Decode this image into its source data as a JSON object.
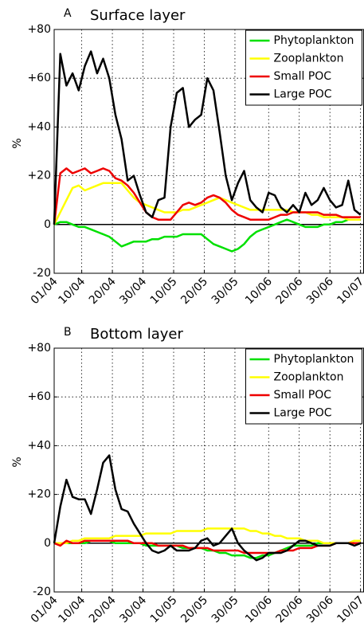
{
  "chart_data": [
    {
      "type": "line",
      "panel": "A",
      "title": "Surface layer",
      "ylabel": "%",
      "grid": true,
      "legend": "upper right",
      "zero_line": true,
      "x": [
        0,
        2,
        4,
        6,
        8,
        10,
        12,
        14,
        16,
        18,
        20,
        22,
        24,
        26,
        28,
        30,
        32,
        34,
        36,
        38,
        40,
        42,
        44,
        46,
        48,
        50,
        52,
        54,
        56,
        58,
        60,
        62,
        64,
        66,
        68,
        70,
        72,
        74,
        76,
        78,
        80,
        82,
        84,
        86,
        88,
        90,
        92,
        94,
        96,
        98,
        100
      ],
      "xlim": [
        0,
        101
      ],
      "xticks": [
        {
          "value": 0,
          "label": "01/04"
        },
        {
          "value": 9,
          "label": "10/04"
        },
        {
          "value": 19,
          "label": "20/04"
        },
        {
          "value": 29,
          "label": "30/04"
        },
        {
          "value": 39,
          "label": "10/05"
        },
        {
          "value": 49,
          "label": "20/05"
        },
        {
          "value": 59,
          "label": "30/05"
        },
        {
          "value": 70,
          "label": "10/06"
        },
        {
          "value": 80,
          "label": "20/06"
        },
        {
          "value": 90,
          "label": "30/06"
        },
        {
          "value": 100,
          "label": "10/07"
        }
      ],
      "ylim": [
        -20,
        80
      ],
      "yticks": [
        -20,
        0,
        {
          "value": 20,
          "label": "+20"
        },
        {
          "value": 40,
          "label": "+40"
        },
        {
          "value": 60,
          "label": "+60"
        },
        {
          "value": 80,
          "label": "+80"
        }
      ],
      "series": [
        {
          "name": "Phytoplankton",
          "color": "#00e000",
          "values": [
            0,
            1,
            1,
            0,
            -1,
            -1,
            -2,
            -3,
            -4,
            -5,
            -7,
            -9,
            -8,
            -7,
            -7,
            -7,
            -6,
            -6,
            -5,
            -5,
            -5,
            -4,
            -4,
            -4,
            -4,
            -6,
            -8,
            -9,
            -10,
            -11,
            -10,
            -8,
            -5,
            -3,
            -2,
            -1,
            0,
            1,
            2,
            1,
            0,
            -1,
            -1,
            -1,
            0,
            0,
            1,
            1,
            2,
            2,
            2
          ]
        },
        {
          "name": "Zooplankton",
          "color": "#ffff00",
          "values": [
            0,
            5,
            10,
            15,
            16,
            14,
            15,
            16,
            17,
            17,
            17,
            17,
            14,
            11,
            9,
            8,
            7,
            6,
            5,
            5,
            5,
            6,
            6,
            7,
            8,
            9,
            10,
            11,
            10,
            9,
            8,
            7,
            6,
            6,
            6,
            6,
            6,
            6,
            6,
            5,
            5,
            5,
            4,
            4,
            3,
            3,
            3,
            3,
            2,
            2,
            2
          ]
        },
        {
          "name": "Small POC",
          "color": "#ee0000",
          "values": [
            0,
            21,
            23,
            21,
            22,
            23,
            21,
            22,
            23,
            22,
            19,
            18,
            16,
            13,
            9,
            5,
            3,
            2,
            2,
            2,
            5,
            8,
            9,
            8,
            9,
            11,
            12,
            11,
            9,
            6,
            4,
            3,
            2,
            2,
            2,
            2,
            3,
            4,
            4,
            5,
            5,
            5,
            5,
            5,
            4,
            4,
            4,
            3,
            3,
            3,
            3
          ]
        },
        {
          "name": "Large POC",
          "color": "#000000",
          "values": [
            0,
            70,
            57,
            62,
            55,
            65,
            71,
            62,
            68,
            60,
            45,
            35,
            18,
            20,
            12,
            5,
            3,
            10,
            11,
            40,
            54,
            56,
            40,
            43,
            45,
            60,
            55,
            38,
            20,
            10,
            17,
            22,
            10,
            7,
            5,
            13,
            12,
            7,
            5,
            8,
            5,
            13,
            8,
            10,
            15,
            10,
            7,
            8,
            18,
            6,
            4
          ]
        }
      ]
    },
    {
      "type": "line",
      "panel": "B",
      "title": "Bottom layer",
      "ylabel": "%",
      "grid": true,
      "legend": "upper right",
      "zero_line": true,
      "x": [
        0,
        2,
        4,
        6,
        8,
        10,
        12,
        14,
        16,
        18,
        20,
        22,
        24,
        26,
        28,
        30,
        32,
        34,
        36,
        38,
        40,
        42,
        44,
        46,
        48,
        50,
        52,
        54,
        56,
        58,
        60,
        62,
        64,
        66,
        68,
        70,
        72,
        74,
        76,
        78,
        80,
        82,
        84,
        86,
        88,
        90,
        92,
        94,
        96,
        98,
        100
      ],
      "xlim": [
        0,
        101
      ],
      "xticks": [
        {
          "value": 0,
          "label": "01/04"
        },
        {
          "value": 9,
          "label": "10/04"
        },
        {
          "value": 19,
          "label": "20/04"
        },
        {
          "value": 29,
          "label": "30/04"
        },
        {
          "value": 39,
          "label": "10/05"
        },
        {
          "value": 49,
          "label": "20/05"
        },
        {
          "value": 59,
          "label": "30/05"
        },
        {
          "value": 70,
          "label": "10/06"
        },
        {
          "value": 80,
          "label": "20/06"
        },
        {
          "value": 90,
          "label": "30/06"
        },
        {
          "value": 100,
          "label": "10/07"
        }
      ],
      "ylim": [
        -20,
        80
      ],
      "yticks": [
        -20,
        0,
        {
          "value": 20,
          "label": "+20"
        },
        {
          "value": 40,
          "label": "+40"
        },
        {
          "value": 60,
          "label": "+60"
        },
        {
          "value": 80,
          "label": "+80"
        }
      ],
      "series": [
        {
          "name": "Phytoplankton",
          "color": "#00e000",
          "values": [
            0,
            0,
            0,
            0,
            0,
            0,
            1,
            1,
            1,
            1,
            0,
            0,
            0,
            0,
            0,
            -1,
            -1,
            -1,
            -1,
            -1,
            -1,
            -2,
            -2,
            -2,
            -2,
            -3,
            -3,
            -4,
            -4,
            -5,
            -5,
            -5,
            -6,
            -6,
            -5,
            -5,
            -4,
            -3,
            -2,
            -1,
            -1,
            -1,
            -1,
            0,
            0,
            0,
            0,
            0,
            0,
            1,
            1
          ]
        },
        {
          "name": "Zooplankton",
          "color": "#ffff00",
          "values": [
            0,
            0,
            0,
            1,
            1,
            2,
            2,
            2,
            2,
            2,
            3,
            3,
            3,
            3,
            3,
            4,
            4,
            4,
            4,
            4,
            5,
            5,
            5,
            5,
            5,
            6,
            6,
            6,
            6,
            6,
            6,
            6,
            5,
            5,
            4,
            4,
            3,
            3,
            2,
            2,
            2,
            1,
            1,
            1,
            0,
            0,
            0,
            0,
            0,
            1,
            1
          ]
        },
        {
          "name": "Small POC",
          "color": "#ee0000",
          "values": [
            0,
            -1,
            1,
            0,
            0,
            1,
            1,
            1,
            1,
            1,
            1,
            1,
            1,
            0,
            0,
            0,
            0,
            -1,
            -1,
            -1,
            -1,
            -1,
            -2,
            -2,
            -2,
            -2,
            -3,
            -3,
            -3,
            -3,
            -3,
            -4,
            -4,
            -4,
            -4,
            -4,
            -4,
            -3,
            -3,
            -3,
            -2,
            -2,
            -2,
            -1,
            -1,
            -1,
            0,
            0,
            0,
            0,
            0
          ]
        },
        {
          "name": "Large POC",
          "color": "#000000",
          "values": [
            0,
            15,
            26,
            19,
            18,
            18,
            12,
            22,
            33,
            36,
            22,
            14,
            13,
            8,
            4,
            0,
            -3,
            -4,
            -3,
            -1,
            -3,
            -3,
            -3,
            -2,
            1,
            2,
            -1,
            0,
            3,
            6,
            0,
            -3,
            -5,
            -7,
            -6,
            -4,
            -4,
            -4,
            -3,
            -1,
            1,
            1,
            0,
            -1,
            -1,
            -1,
            0,
            0,
            0,
            -1,
            0
          ]
        }
      ]
    }
  ]
}
